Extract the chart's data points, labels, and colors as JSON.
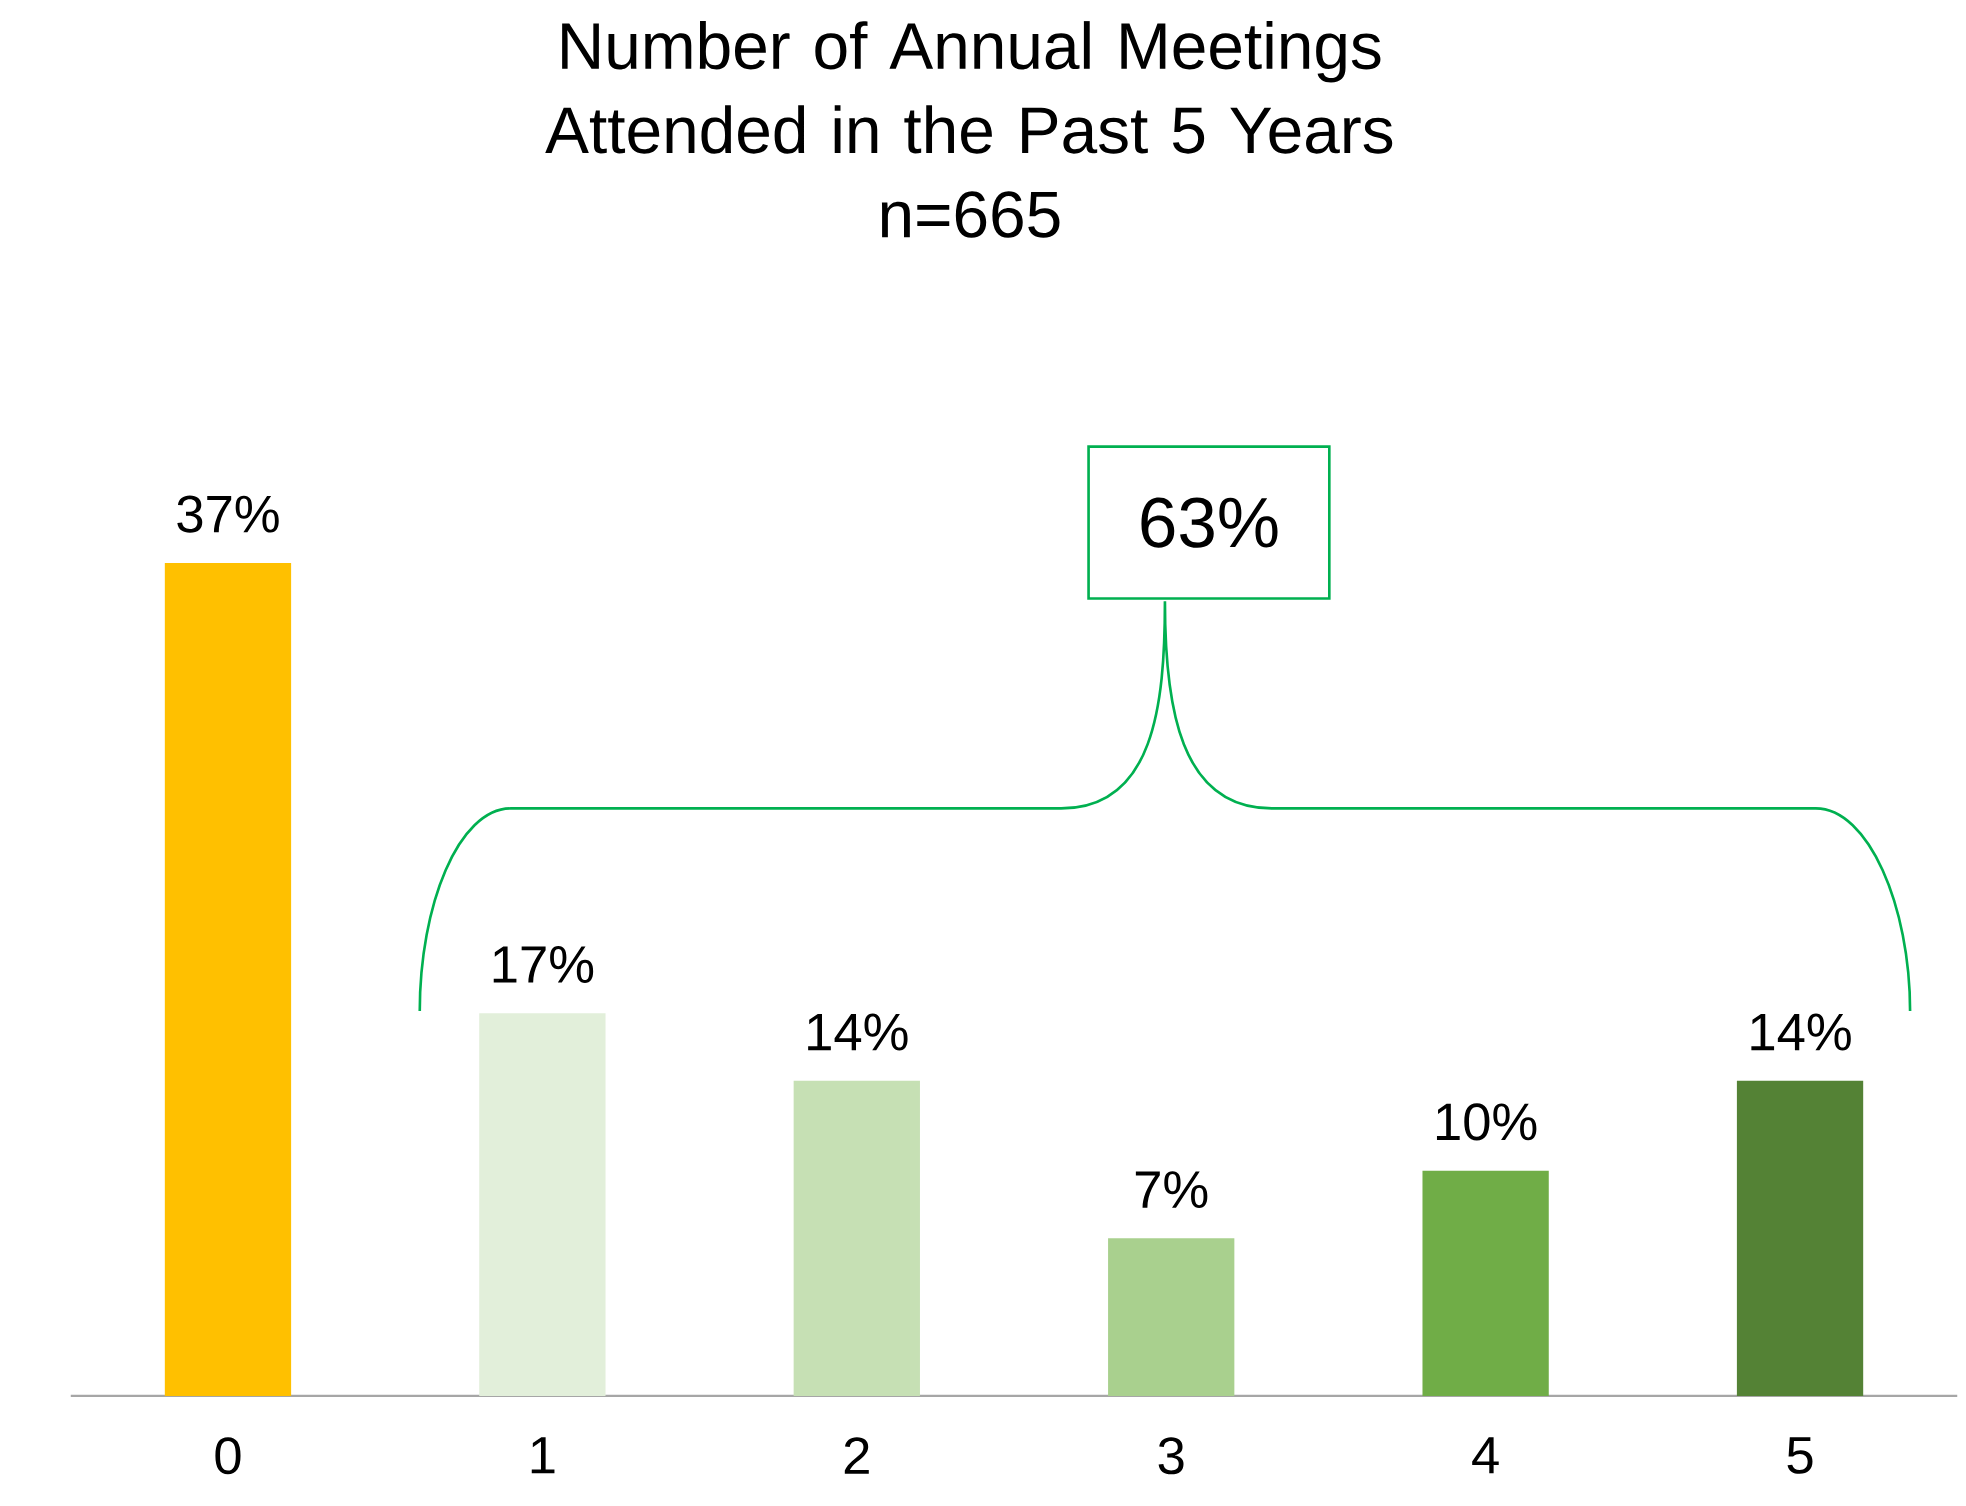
{
  "chart_data": {
    "type": "bar",
    "title": "Number of Annual Meetings Attended in the Past 5 Years",
    "subtitle": "n=665",
    "categories": [
      "0",
      "1",
      "2",
      "3",
      "4",
      "5"
    ],
    "values": [
      37,
      17,
      14,
      7,
      10,
      14
    ],
    "colors": [
      "#ffc000",
      "#e2efda",
      "#c6e0b4",
      "#a9d08e",
      "#70ad47",
      "#548235"
    ],
    "value_labels": [
      "37%",
      "17%",
      "14%",
      "7%",
      "10%",
      "14%"
    ],
    "annotations": [
      "63%"
    ]
  }
}
